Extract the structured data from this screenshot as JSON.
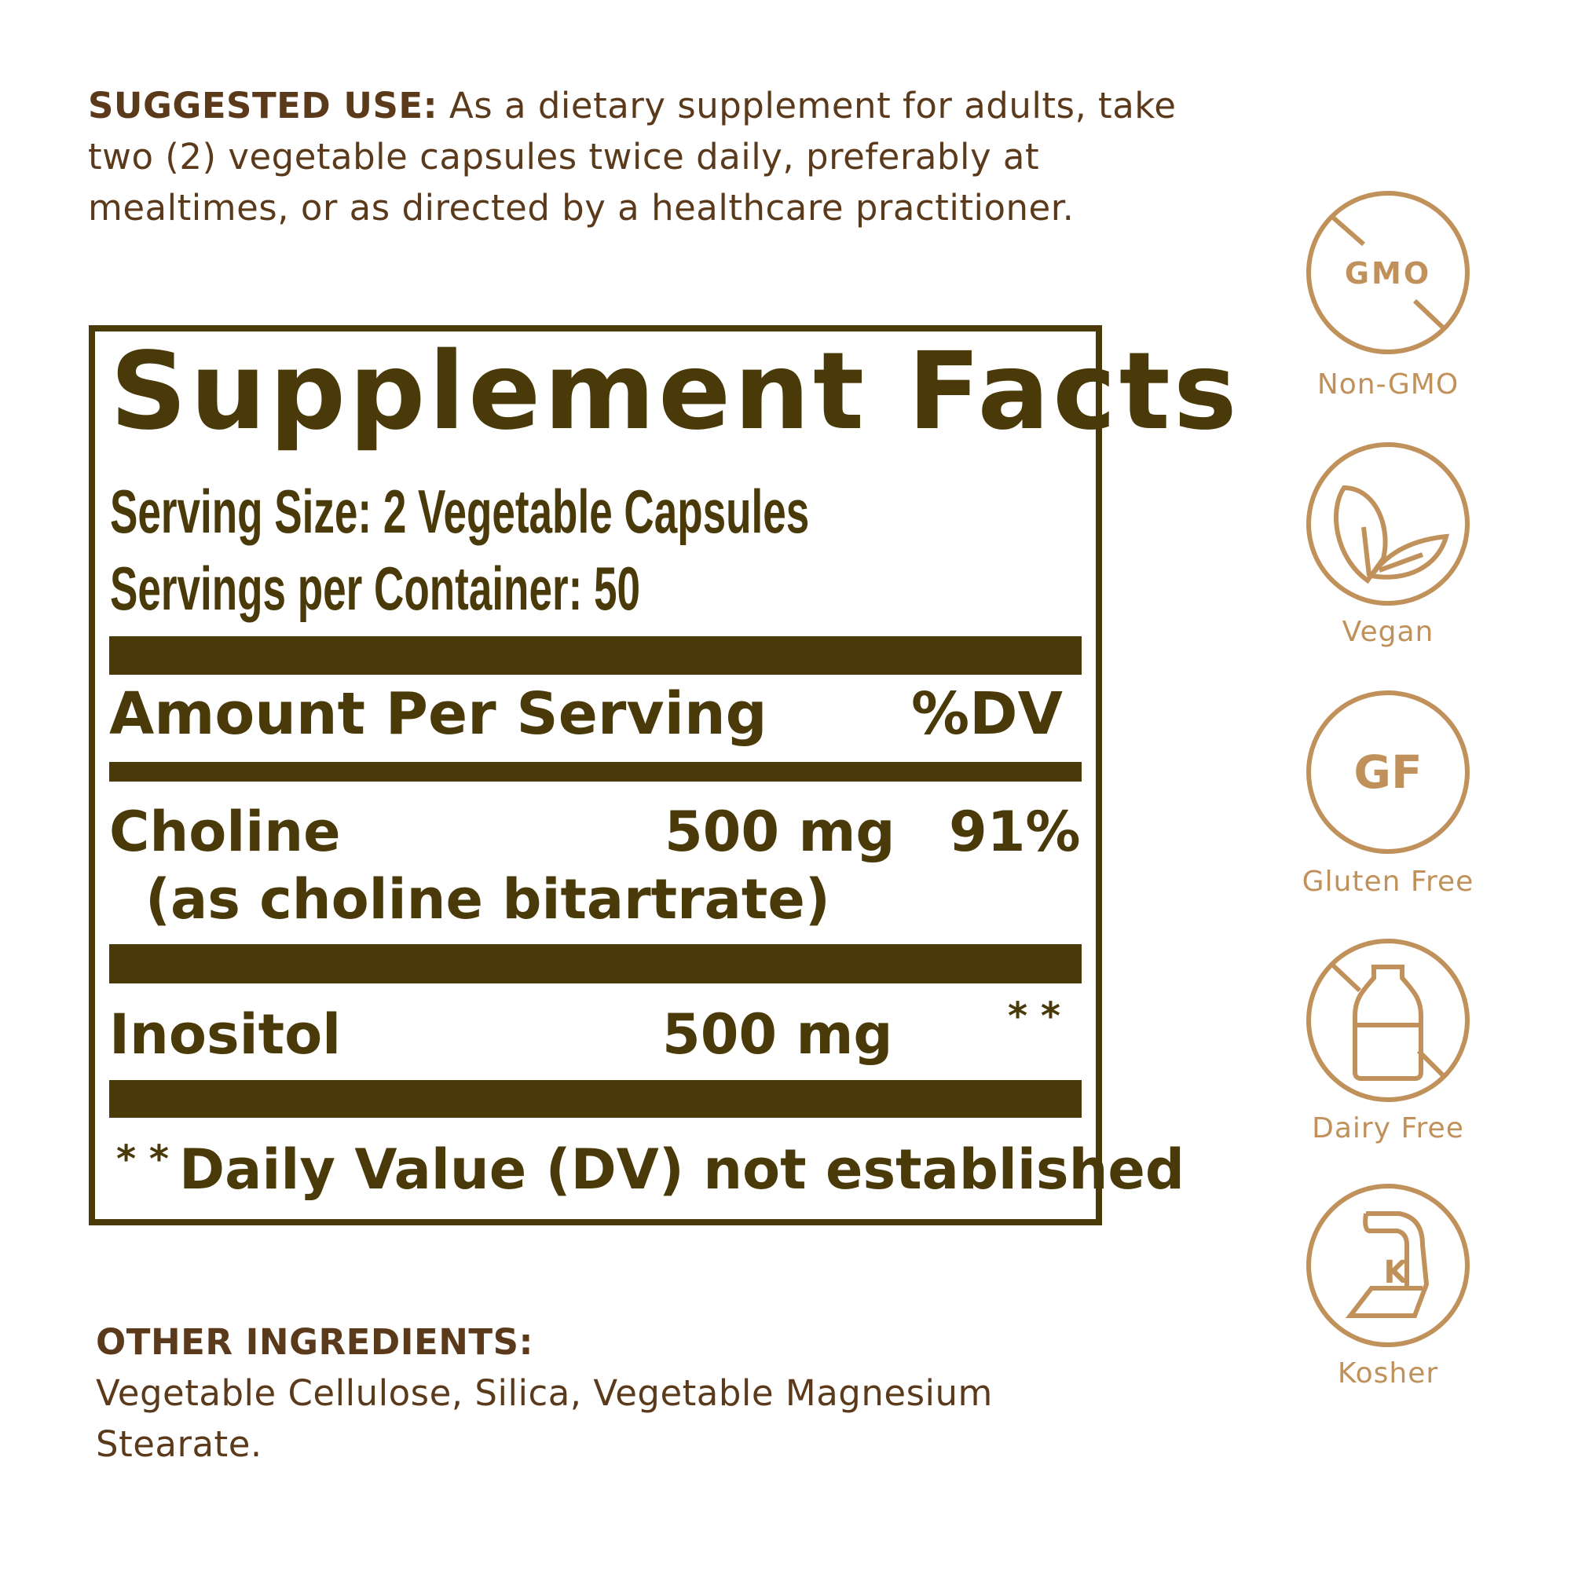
{
  "suggested_use": {
    "label": "SUGGESTED USE:",
    "text": " As a dietary supplement for adults, take two (2) vegetable capsules twice daily, preferably at mealtimes, or as directed by a healthcare practitioner."
  },
  "facts": {
    "title": "Supplement Facts",
    "serving_size": "Serving Size: 2 Vegetable Capsules",
    "servings_per_container": "Servings per Container: 50",
    "amount_header": "Amount Per Serving",
    "dv_header": "%DV",
    "rows": [
      {
        "name": "Choline",
        "sub": "(as choline bitartrate)",
        "amount": "500 mg",
        "dv": "91%"
      },
      {
        "name": "Inositol",
        "amount": "500 mg",
        "dv": "* *"
      }
    ],
    "footnote_mark": "* *",
    "footnote": "Daily Value (DV) not established"
  },
  "other_ingredients": {
    "label": "OTHER INGREDIENTS:",
    "text": "Vegetable Cellulose, Silica, Vegetable Magnesium Stearate."
  },
  "badges": [
    {
      "icon": "non-gmo-icon",
      "inner": "GMO",
      "label": "Non-GMO"
    },
    {
      "icon": "vegan-leaf-icon",
      "label": "Vegan"
    },
    {
      "icon": "gluten-free-icon",
      "inner": "GF",
      "label": "Gluten Free"
    },
    {
      "icon": "dairy-free-icon",
      "label": "Dairy Free"
    },
    {
      "icon": "kosher-icon",
      "inner": "K",
      "label": "Kosher"
    }
  ],
  "colors": {
    "label_dark": "#4a3a0a",
    "text_brown": "#5b3a1c",
    "badge_gold": "#c0915a"
  }
}
